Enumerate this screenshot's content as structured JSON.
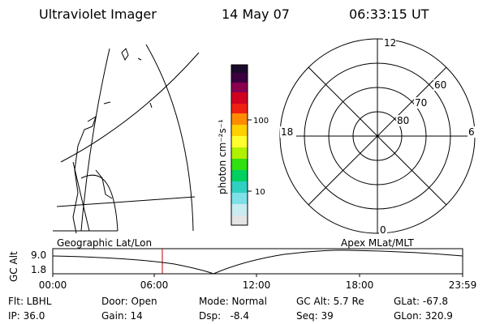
{
  "header": {
    "instrument": "Ultraviolet Imager",
    "date": "14 May 07",
    "time": "06:33:15 UT"
  },
  "colorbar": {
    "label": "photon cm⁻²s⁻¹",
    "ticks": [
      "100",
      "10"
    ]
  },
  "polar": {
    "mlt_labels": [
      "12",
      "18",
      "6",
      "0"
    ],
    "lat_labels": [
      "60",
      "70",
      "80"
    ]
  },
  "timeline": {
    "left_title": "Geographic Lat/Lon",
    "right_title": "Apex MLat/MLT",
    "y_label": "GC Alt",
    "y_ticks": [
      "9.0",
      "1.8"
    ],
    "x_ticks": [
      "00:00",
      "06:00",
      "12:00",
      "18:00",
      "23:59"
    ]
  },
  "footer": [
    [
      "Flt: LBHL",
      "IP: 36.0"
    ],
    [
      "Door: Open",
      "Gain: 14"
    ],
    [
      "Mode: Normal",
      "Dsp:   -8.4"
    ],
    [
      "GC Alt: 5.7 Re",
      "Seq: 39"
    ],
    [
      "GLat: -67.8",
      "GLon: 320.9"
    ]
  ]
}
